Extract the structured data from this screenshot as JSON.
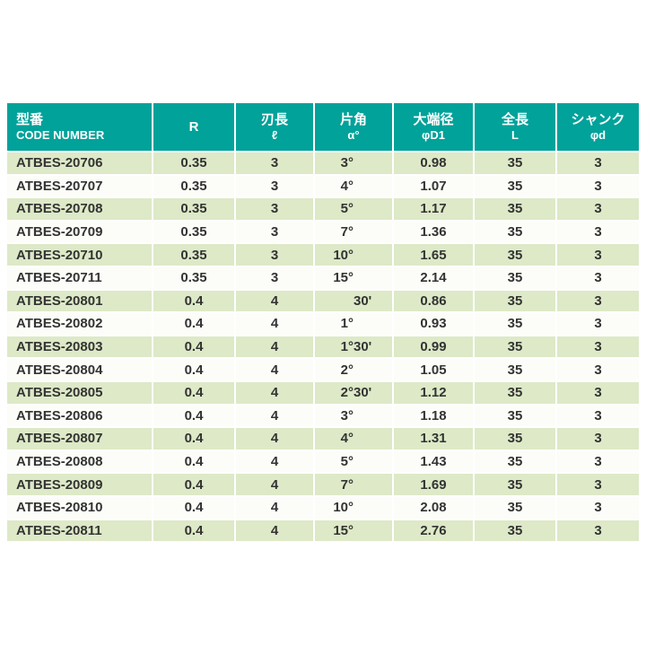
{
  "colors": {
    "header_bg": "#00a29a",
    "header_text": "#ffffff",
    "row_alt_green": "#dde9c7",
    "row_alt_white": "#fcfdf8",
    "text": "#333333"
  },
  "table": {
    "columns": [
      {
        "key": "code",
        "label": "型番",
        "sublabel": "CODE NUMBER",
        "align": "left"
      },
      {
        "key": "r",
        "label": "R",
        "sublabel": "",
        "align": "center"
      },
      {
        "key": "flute_length",
        "label": "刃長",
        "sublabel": "ℓ",
        "align": "center"
      },
      {
        "key": "half_angle",
        "label": "片角",
        "sublabel": "α°",
        "align": "center"
      },
      {
        "key": "large_end_dia",
        "label": "大端径",
        "sublabel": "φD1",
        "align": "center"
      },
      {
        "key": "overall_length",
        "label": "全長",
        "sublabel": "L",
        "align": "center"
      },
      {
        "key": "shank_dia",
        "label": "シャンク",
        "sublabel": "φd",
        "align": "center"
      }
    ],
    "rows": [
      {
        "code": "ATBES-20706",
        "r": "0.35",
        "flute_length": "3",
        "angle_deg": "3°",
        "angle_min": "",
        "large_end_dia": "0.98",
        "overall_length": "35",
        "shank_dia": "3"
      },
      {
        "code": "ATBES-20707",
        "r": "0.35",
        "flute_length": "3",
        "angle_deg": "4°",
        "angle_min": "",
        "large_end_dia": "1.07",
        "overall_length": "35",
        "shank_dia": "3"
      },
      {
        "code": "ATBES-20708",
        "r": "0.35",
        "flute_length": "3",
        "angle_deg": "5°",
        "angle_min": "",
        "large_end_dia": "1.17",
        "overall_length": "35",
        "shank_dia": "3"
      },
      {
        "code": "ATBES-20709",
        "r": "0.35",
        "flute_length": "3",
        "angle_deg": "7°",
        "angle_min": "",
        "large_end_dia": "1.36",
        "overall_length": "35",
        "shank_dia": "3"
      },
      {
        "code": "ATBES-20710",
        "r": "0.35",
        "flute_length": "3",
        "angle_deg": "10°",
        "angle_min": "",
        "large_end_dia": "1.65",
        "overall_length": "35",
        "shank_dia": "3"
      },
      {
        "code": "ATBES-20711",
        "r": "0.35",
        "flute_length": "3",
        "angle_deg": "15°",
        "angle_min": "",
        "large_end_dia": "2.14",
        "overall_length": "35",
        "shank_dia": "3"
      },
      {
        "code": "ATBES-20801",
        "r": "0.4",
        "flute_length": "4",
        "angle_deg": "",
        "angle_min": "30'",
        "large_end_dia": "0.86",
        "overall_length": "35",
        "shank_dia": "3"
      },
      {
        "code": "ATBES-20802",
        "r": "0.4",
        "flute_length": "4",
        "angle_deg": "1°",
        "angle_min": "",
        "large_end_dia": "0.93",
        "overall_length": "35",
        "shank_dia": "3"
      },
      {
        "code": "ATBES-20803",
        "r": "0.4",
        "flute_length": "4",
        "angle_deg": "1°",
        "angle_min": "30'",
        "large_end_dia": "0.99",
        "overall_length": "35",
        "shank_dia": "3"
      },
      {
        "code": "ATBES-20804",
        "r": "0.4",
        "flute_length": "4",
        "angle_deg": "2°",
        "angle_min": "",
        "large_end_dia": "1.05",
        "overall_length": "35",
        "shank_dia": "3"
      },
      {
        "code": "ATBES-20805",
        "r": "0.4",
        "flute_length": "4",
        "angle_deg": "2°",
        "angle_min": "30'",
        "large_end_dia": "1.12",
        "overall_length": "35",
        "shank_dia": "3"
      },
      {
        "code": "ATBES-20806",
        "r": "0.4",
        "flute_length": "4",
        "angle_deg": "3°",
        "angle_min": "",
        "large_end_dia": "1.18",
        "overall_length": "35",
        "shank_dia": "3"
      },
      {
        "code": "ATBES-20807",
        "r": "0.4",
        "flute_length": "4",
        "angle_deg": "4°",
        "angle_min": "",
        "large_end_dia": "1.31",
        "overall_length": "35",
        "shank_dia": "3"
      },
      {
        "code": "ATBES-20808",
        "r": "0.4",
        "flute_length": "4",
        "angle_deg": "5°",
        "angle_min": "",
        "large_end_dia": "1.43",
        "overall_length": "35",
        "shank_dia": "3"
      },
      {
        "code": "ATBES-20809",
        "r": "0.4",
        "flute_length": "4",
        "angle_deg": "7°",
        "angle_min": "",
        "large_end_dia": "1.69",
        "overall_length": "35",
        "shank_dia": "3"
      },
      {
        "code": "ATBES-20810",
        "r": "0.4",
        "flute_length": "4",
        "angle_deg": "10°",
        "angle_min": "",
        "large_end_dia": "2.08",
        "overall_length": "35",
        "shank_dia": "3"
      },
      {
        "code": "ATBES-20811",
        "r": "0.4",
        "flute_length": "4",
        "angle_deg": "15°",
        "angle_min": "",
        "large_end_dia": "2.76",
        "overall_length": "35",
        "shank_dia": "3"
      }
    ]
  }
}
